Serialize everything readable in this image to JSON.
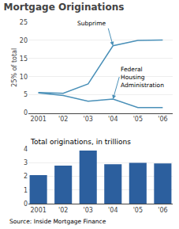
{
  "chart_data": [
    {
      "type": "line",
      "title": "Mortgage Originations",
      "ylabel": "25% of total",
      "x": [
        2001,
        2002,
        2003,
        2004,
        2005,
        2006
      ],
      "xlim": [
        2000.6,
        2006.4
      ],
      "xticks": [
        2001,
        {
          "value": 2002,
          "label": "'02"
        },
        {
          "value": 2003,
          "label": "'03"
        },
        {
          "value": 2004,
          "label": "'04"
        },
        {
          "value": 2005,
          "label": "'05"
        },
        {
          "value": 2006,
          "label": "'06"
        }
      ],
      "ylim": [
        0,
        25
      ],
      "yticks": [
        0,
        5,
        10,
        15,
        20,
        25
      ],
      "grid": true,
      "series": [
        {
          "color": "#4a90b8",
          "values": [
            5.6,
            5.4,
            8.0,
            18.5,
            20.0,
            20.1
          ]
        },
        {
          "color": "#4a90b8",
          "values": [
            5.5,
            4.8,
            3.2,
            3.8,
            1.5,
            1.5
          ]
        }
      ],
      "annotations": [
        {
          "text": "Subprime",
          "x": 2004,
          "y": 18.5
        },
        {
          "text": "Federal\nHousing\nAdministration",
          "x": 2004,
          "y": 3.8
        }
      ]
    },
    {
      "type": "bar",
      "title": "Total originations, in trillions",
      "x": [
        2001,
        2002,
        2003,
        2004,
        2005,
        2006
      ],
      "values": [
        2.1,
        2.8,
        3.9,
        2.9,
        3.0,
        2.95
      ],
      "color": "#2c5f9e",
      "xlim": [
        2000.6,
        2006.4
      ],
      "xticks": [
        2001,
        {
          "value": 2002,
          "label": "'02"
        },
        {
          "value": 2003,
          "label": "'03"
        },
        {
          "value": 2004,
          "label": "'04"
        },
        {
          "value": 2005,
          "label": "'05"
        },
        {
          "value": 2006,
          "label": "'06"
        }
      ],
      "ylim": [
        0,
        4
      ],
      "yticks": [
        0,
        1,
        2,
        3,
        4
      ],
      "grid": true,
      "source": "Source: Inside Mortgage Finance"
    }
  ]
}
